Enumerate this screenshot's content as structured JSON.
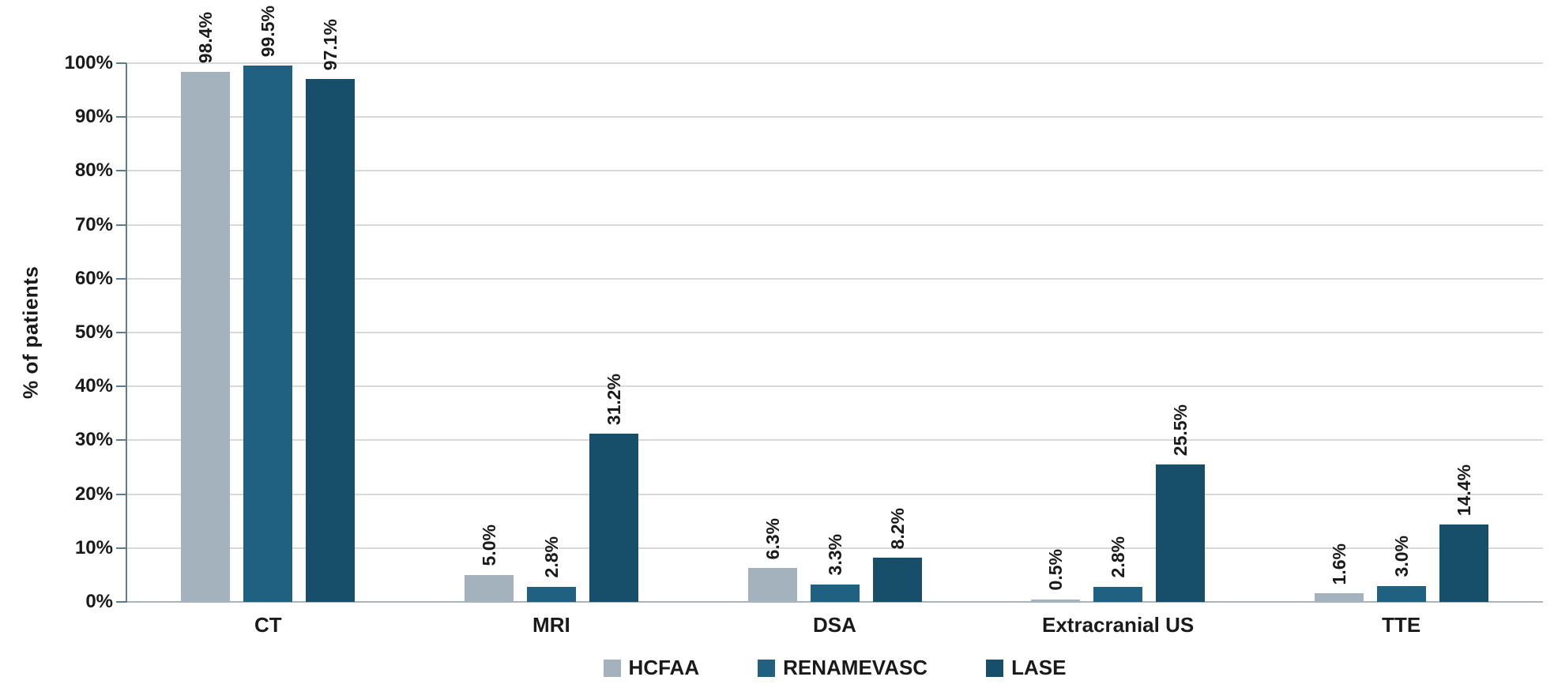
{
  "chart_data": {
    "type": "bar",
    "title": "",
    "xlabel": "",
    "ylabel": "% of patients",
    "categories": [
      "CT",
      "MRI",
      "DSA",
      "Extracranial US",
      "TTE"
    ],
    "series": [
      {
        "name": "HCFAA",
        "color": "#a3b2bc",
        "values": [
          98.4,
          5.0,
          6.3,
          0.5,
          1.6
        ],
        "labels": [
          "98.4%",
          "5.0%",
          "6.3%",
          "0.5%",
          "1.6%"
        ]
      },
      {
        "name": "RENAMEVASC",
        "color": "#206080",
        "values": [
          99.5,
          2.8,
          3.3,
          2.8,
          3.0
        ],
        "labels": [
          "99.5%",
          "2.8%",
          "3.3%",
          "2.8%",
          "3.0%"
        ]
      },
      {
        "name": "LASE",
        "color": "#174f6b",
        "values": [
          97.1,
          31.2,
          8.2,
          25.5,
          14.4
        ],
        "labels": [
          "97.1%",
          "31.2%",
          "8.2%",
          "25.5%",
          "14.4%"
        ]
      }
    ],
    "y_axis": {
      "min": 0,
      "max": 100,
      "step": 10,
      "tick_labels": [
        "0%",
        "10%",
        "20%",
        "30%",
        "40%",
        "50%",
        "60%",
        "70%",
        "80%",
        "90%",
        "100%"
      ]
    },
    "legend": {
      "position": "bottom",
      "entries": [
        "HCFAA",
        "RENAMEVASC",
        "LASE"
      ]
    },
    "grid": true,
    "data_label_rotation": -90,
    "colors": {
      "gridline": "#d9d9d9",
      "axis": "#5f7d91",
      "baseline": "#a9b4bc",
      "text": "#1a1a1a",
      "background": "#ffffff"
    }
  }
}
